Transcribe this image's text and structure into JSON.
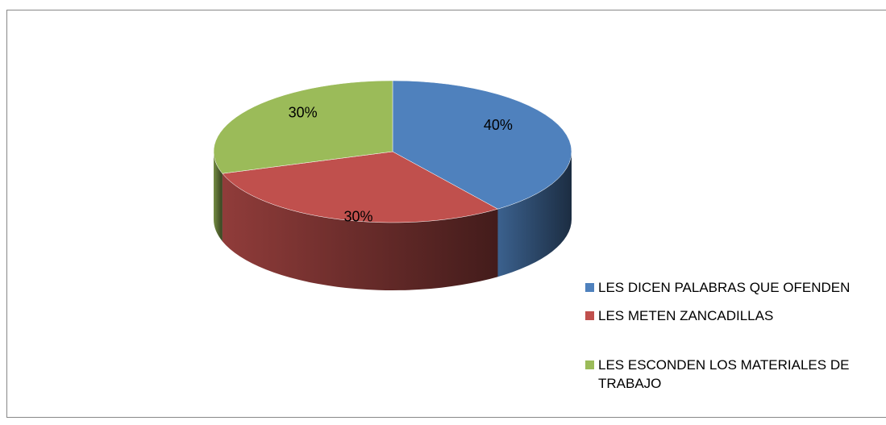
{
  "chart_data": {
    "type": "pie",
    "three_d": true,
    "categories": [
      "LES DICEN PALABRAS QUE OFENDEN",
      "LES METEN ZANCADILLAS",
      "LES ESCONDEN LOS MATERIALES DE TRABAJO"
    ],
    "values": [
      40,
      30,
      30
    ],
    "value_labels": [
      "40%",
      "30%",
      "30%"
    ],
    "colors": [
      "#4f81bd",
      "#c0504d",
      "#9bbb59"
    ],
    "legend": "right"
  }
}
